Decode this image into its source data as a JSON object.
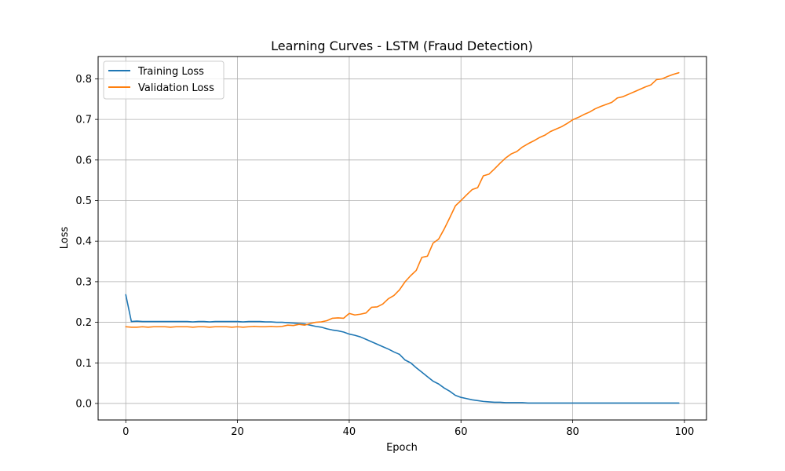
{
  "chart_data": {
    "type": "line",
    "title": "Learning Curves - LSTM (Fraud Detection)",
    "xlabel": "Epoch",
    "ylabel": "Loss",
    "xlim": [
      -4.95,
      103.95
    ],
    "ylim": [
      -0.0407,
      0.855
    ],
    "xticks": [
      0,
      20,
      40,
      60,
      80,
      100
    ],
    "yticks": [
      0.0,
      0.1,
      0.2,
      0.3,
      0.4,
      0.5,
      0.6,
      0.7,
      0.8
    ],
    "xtick_labels": [
      "0",
      "20",
      "40",
      "60",
      "80",
      "100"
    ],
    "ytick_labels": [
      "0.0",
      "0.1",
      "0.2",
      "0.3",
      "0.4",
      "0.5",
      "0.6",
      "0.7",
      "0.8"
    ],
    "grid": true,
    "legend_position": "top-left",
    "series": [
      {
        "name": "Training Loss",
        "color": "#1f77b4",
        "x": [
          0,
          1,
          2,
          3,
          4,
          5,
          6,
          7,
          8,
          9,
          10,
          11,
          12,
          13,
          14,
          15,
          16,
          17,
          18,
          19,
          20,
          21,
          22,
          23,
          24,
          25,
          26,
          27,
          28,
          29,
          30,
          31,
          32,
          33,
          34,
          35,
          36,
          37,
          38,
          39,
          40,
          41,
          42,
          43,
          44,
          45,
          46,
          47,
          48,
          49,
          50,
          51,
          52,
          53,
          54,
          55,
          56,
          57,
          58,
          59,
          60,
          61,
          62,
          63,
          64,
          65,
          66,
          67,
          68,
          69,
          70,
          71,
          72,
          73,
          74,
          75,
          76,
          77,
          78,
          79,
          80,
          81,
          82,
          83,
          84,
          85,
          86,
          87,
          88,
          89,
          90,
          91,
          92,
          93,
          94,
          95,
          96,
          97,
          98,
          99
        ],
        "y": [
          0.268,
          0.202,
          0.203,
          0.202,
          0.202,
          0.202,
          0.202,
          0.202,
          0.202,
          0.202,
          0.202,
          0.202,
          0.201,
          0.202,
          0.202,
          0.201,
          0.202,
          0.202,
          0.202,
          0.202,
          0.202,
          0.201,
          0.202,
          0.202,
          0.202,
          0.201,
          0.201,
          0.2,
          0.2,
          0.199,
          0.198,
          0.197,
          0.196,
          0.193,
          0.19,
          0.188,
          0.184,
          0.181,
          0.179,
          0.176,
          0.171,
          0.168,
          0.164,
          0.158,
          0.152,
          0.146,
          0.14,
          0.134,
          0.127,
          0.121,
          0.107,
          0.1,
          0.088,
          0.077,
          0.066,
          0.055,
          0.048,
          0.038,
          0.03,
          0.02,
          0.015,
          0.012,
          0.009,
          0.007,
          0.005,
          0.004,
          0.003,
          0.003,
          0.002,
          0.002,
          0.002,
          0.002,
          0.001,
          0.001,
          0.001,
          0.001,
          0.001,
          0.001,
          0.001,
          0.001,
          0.001,
          0.001,
          0.001,
          0.001,
          0.001,
          0.001,
          0.001,
          0.001,
          0.001,
          0.001,
          0.001,
          0.001,
          0.001,
          0.001,
          0.001,
          0.001,
          0.001,
          0.001,
          0.001,
          0.001
        ]
      },
      {
        "name": "Validation Loss",
        "color": "#ff7f0e",
        "x": [
          0,
          1,
          2,
          3,
          4,
          5,
          6,
          7,
          8,
          9,
          10,
          11,
          12,
          13,
          14,
          15,
          16,
          17,
          18,
          19,
          20,
          21,
          22,
          23,
          24,
          25,
          26,
          27,
          28,
          29,
          30,
          31,
          32,
          33,
          34,
          35,
          36,
          37,
          38,
          39,
          40,
          41,
          42,
          43,
          44,
          45,
          46,
          47,
          48,
          49,
          50,
          51,
          52,
          53,
          54,
          55,
          56,
          57,
          58,
          59,
          60,
          61,
          62,
          63,
          64,
          65,
          66,
          67,
          68,
          69,
          70,
          71,
          72,
          73,
          74,
          75,
          76,
          77,
          78,
          79,
          80,
          81,
          82,
          83,
          84,
          85,
          86,
          87,
          88,
          89,
          90,
          91,
          92,
          93,
          94,
          95,
          96,
          97,
          98,
          99
        ],
        "y": [
          0.189,
          0.188,
          0.188,
          0.189,
          0.188,
          0.189,
          0.189,
          0.189,
          0.188,
          0.189,
          0.189,
          0.189,
          0.188,
          0.189,
          0.189,
          0.188,
          0.189,
          0.189,
          0.189,
          0.188,
          0.189,
          0.188,
          0.189,
          0.19,
          0.189,
          0.189,
          0.19,
          0.189,
          0.19,
          0.193,
          0.192,
          0.195,
          0.193,
          0.197,
          0.2,
          0.201,
          0.204,
          0.21,
          0.211,
          0.21,
          0.222,
          0.218,
          0.22,
          0.223,
          0.237,
          0.238,
          0.245,
          0.258,
          0.266,
          0.28,
          0.3,
          0.315,
          0.328,
          0.36,
          0.363,
          0.395,
          0.405,
          0.43,
          0.458,
          0.487,
          0.5,
          0.514,
          0.527,
          0.532,
          0.561,
          0.565,
          0.578,
          0.592,
          0.605,
          0.615,
          0.621,
          0.632,
          0.64,
          0.647,
          0.655,
          0.661,
          0.67,
          0.676,
          0.682,
          0.69,
          0.699,
          0.705,
          0.712,
          0.718,
          0.726,
          0.732,
          0.737,
          0.742,
          0.753,
          0.756,
          0.762,
          0.768,
          0.774,
          0.78,
          0.785,
          0.798,
          0.8,
          0.806,
          0.811,
          0.815
        ]
      }
    ]
  }
}
